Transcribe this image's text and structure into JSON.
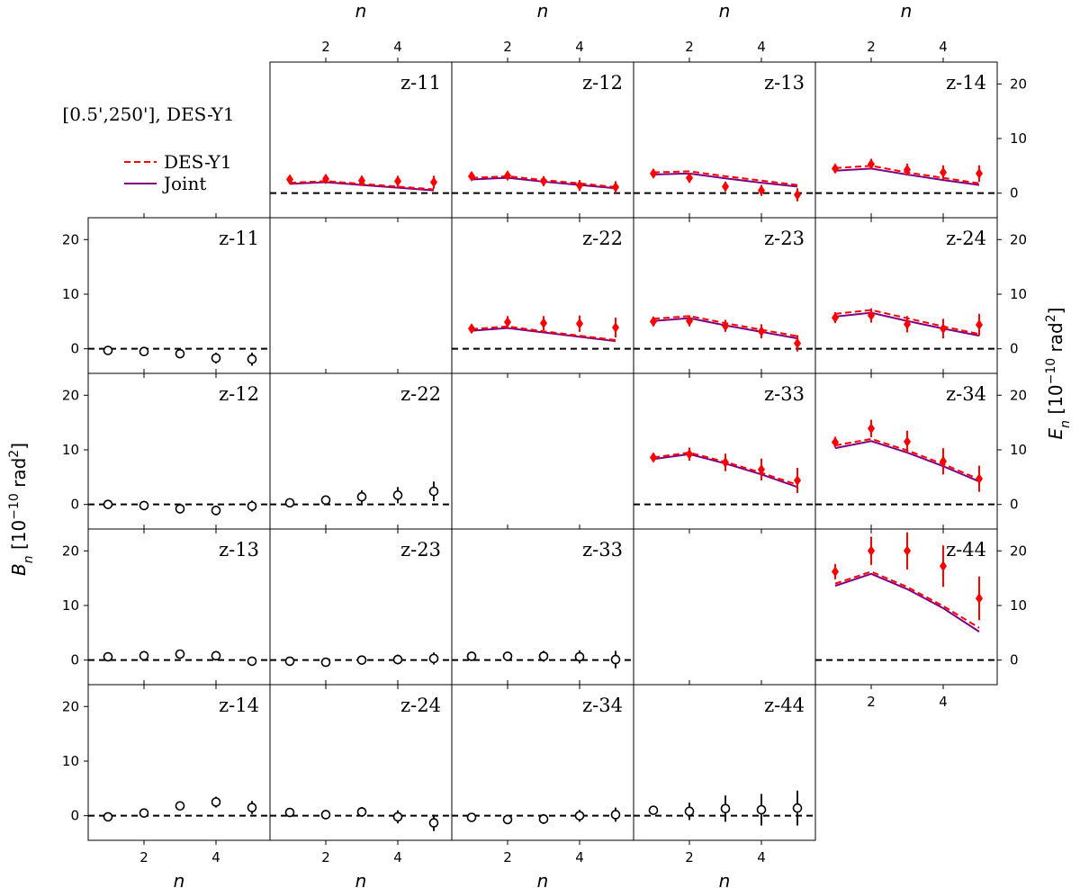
{
  "chart_data": {
    "type": "scatter",
    "title": "[0.5',250'],  DES-Y1",
    "legend": {
      "position": "top-left",
      "entries": [
        {
          "label": "DES-Y1",
          "color": "#ff0000",
          "style": "dashed"
        },
        {
          "label": "Joint",
          "color": "#800080",
          "style": "solid"
        }
      ]
    },
    "x_label": "n",
    "y_label_left": "B_n [10^{-10} rad^2]",
    "y_label_right": "E_n [10^{-10} rad^2]",
    "x_ticks": [
      2,
      4
    ],
    "y_ticks": [
      0,
      10,
      20
    ],
    "xlim": [
      0.45,
      5.5
    ],
    "ylim": [
      -4.5,
      24
    ],
    "n": [
      1,
      2,
      3,
      4,
      5
    ],
    "e_mode": [
      {
        "label": "z-11",
        "model_desy1": [
          1.9,
          2.2,
          1.7,
          1.2,
          0.7
        ],
        "model_joint": [
          1.7,
          2.0,
          1.5,
          1.0,
          0.5
        ],
        "values": [
          2.5,
          2.6,
          2.3,
          2.2,
          2.0
        ],
        "errors": [
          0.8,
          0.8,
          0.9,
          1.0,
          1.2
        ]
      },
      {
        "label": "z-12",
        "model_desy1": [
          2.8,
          3.1,
          2.4,
          1.8,
          1.1
        ],
        "model_joint": [
          2.5,
          2.8,
          2.1,
          1.5,
          0.9
        ],
        "values": [
          3.1,
          3.2,
          2.2,
          1.4,
          1.1
        ],
        "errors": [
          0.7,
          0.8,
          0.9,
          1.0,
          1.1
        ]
      },
      {
        "label": "z-13",
        "model_desy1": [
          3.8,
          4.0,
          3.1,
          2.3,
          1.5
        ],
        "model_joint": [
          3.4,
          3.6,
          2.7,
          1.9,
          1.2
        ],
        "values": [
          3.6,
          2.8,
          1.2,
          0.5,
          -0.3
        ],
        "errors": [
          0.8,
          0.9,
          0.9,
          1.0,
          1.2
        ]
      },
      {
        "label": "z-14",
        "model_desy1": [
          4.6,
          5.0,
          3.8,
          2.8,
          1.8
        ],
        "model_joint": [
          4.1,
          4.5,
          3.4,
          2.4,
          1.5
        ],
        "values": [
          4.5,
          5.3,
          4.3,
          3.8,
          3.6
        ],
        "errors": [
          0.8,
          1.0,
          1.1,
          1.3,
          1.5
        ]
      },
      {
        "label": "z-22",
        "model_desy1": [
          3.6,
          4.1,
          3.2,
          2.4,
          1.6
        ],
        "model_joint": [
          3.3,
          3.8,
          3.0,
          2.2,
          1.4
        ],
        "values": [
          3.7,
          4.9,
          4.7,
          4.6,
          3.9
        ],
        "errors": [
          0.8,
          1.1,
          1.3,
          1.5,
          1.8
        ]
      },
      {
        "label": "z-23",
        "model_desy1": [
          5.5,
          6.0,
          4.7,
          3.5,
          2.3
        ],
        "model_joint": [
          5.1,
          5.6,
          4.3,
          3.1,
          1.9
        ],
        "values": [
          5.0,
          5.1,
          4.2,
          3.2,
          1.0
        ],
        "errors": [
          0.9,
          1.0,
          1.1,
          1.3,
          1.5
        ]
      },
      {
        "label": "z-24",
        "model_desy1": [
          6.4,
          7.1,
          5.6,
          4.1,
          2.7
        ],
        "model_joint": [
          5.9,
          6.6,
          5.1,
          3.7,
          2.4
        ],
        "values": [
          5.7,
          6.1,
          4.5,
          3.7,
          4.4
        ],
        "errors": [
          1.0,
          1.3,
          1.5,
          1.8,
          2.0
        ]
      },
      {
        "label": "z-33",
        "model_desy1": [
          8.6,
          9.5,
          7.8,
          5.8,
          3.6
        ],
        "model_joint": [
          8.3,
          9.2,
          7.5,
          5.5,
          3.2
        ],
        "values": [
          8.6,
          9.2,
          7.7,
          6.4,
          4.4
        ],
        "errors": [
          0.8,
          1.2,
          1.6,
          2.0,
          2.3
        ]
      },
      {
        "label": "z-34",
        "model_desy1": [
          10.8,
          12.0,
          9.9,
          7.4,
          4.6
        ],
        "model_joint": [
          10.3,
          11.6,
          9.5,
          7.0,
          4.2
        ],
        "values": [
          11.4,
          13.9,
          11.5,
          7.9,
          4.7
        ],
        "errors": [
          1.0,
          1.6,
          2.0,
          2.4,
          2.4
        ]
      },
      {
        "label": "z-44",
        "model_desy1": [
          14.0,
          16.2,
          13.4,
          9.9,
          5.9
        ],
        "model_joint": [
          13.6,
          15.8,
          13.0,
          9.5,
          5.2
        ],
        "values": [
          16.2,
          20.0,
          20.0,
          17.2,
          11.3
        ],
        "errors": [
          1.4,
          2.6,
          3.4,
          3.8,
          4.0
        ]
      }
    ],
    "b_mode": [
      {
        "label": "z-11",
        "values": [
          -0.3,
          -0.5,
          -0.9,
          -1.7,
          -1.9
        ],
        "errors": [
          0.5,
          0.7,
          0.8,
          1.0,
          1.2
        ]
      },
      {
        "label": "z-12",
        "values": [
          0.0,
          -0.2,
          -0.8,
          -1.1,
          -0.3
        ],
        "errors": [
          0.4,
          0.6,
          0.7,
          0.9,
          1.0
        ]
      },
      {
        "label": "z-22",
        "values": [
          0.3,
          0.8,
          1.4,
          1.7,
          2.4
        ],
        "errors": [
          0.6,
          0.8,
          1.2,
          1.5,
          1.8
        ]
      },
      {
        "label": "z-13",
        "values": [
          0.6,
          0.8,
          1.1,
          0.8,
          -0.2
        ],
        "errors": [
          0.4,
          0.5,
          0.6,
          0.7,
          0.8
        ]
      },
      {
        "label": "z-23",
        "values": [
          -0.2,
          -0.4,
          0.0,
          0.1,
          0.3
        ],
        "errors": [
          0.5,
          0.6,
          0.7,
          0.9,
          1.1
        ]
      },
      {
        "label": "z-33",
        "values": [
          0.7,
          0.7,
          0.7,
          0.6,
          0.1
        ],
        "errors": [
          0.6,
          0.8,
          1.0,
          1.2,
          1.6
        ]
      },
      {
        "label": "z-14",
        "values": [
          -0.2,
          0.5,
          1.8,
          2.5,
          1.5
        ],
        "errors": [
          0.4,
          0.6,
          0.8,
          1.0,
          1.2
        ]
      },
      {
        "label": "z-24",
        "values": [
          0.6,
          0.2,
          0.7,
          -0.2,
          -1.3
        ],
        "errors": [
          0.5,
          0.7,
          0.9,
          1.2,
          1.5
        ]
      },
      {
        "label": "z-34",
        "values": [
          -0.3,
          -0.7,
          -0.6,
          0.0,
          0.2
        ],
        "errors": [
          0.5,
          0.7,
          0.9,
          1.1,
          1.3
        ]
      },
      {
        "label": "z-44",
        "values": [
          1.0,
          0.8,
          1.3,
          1.1,
          1.4
        ],
        "errors": [
          0.8,
          1.6,
          2.4,
          2.9,
          3.2
        ]
      }
    ]
  }
}
